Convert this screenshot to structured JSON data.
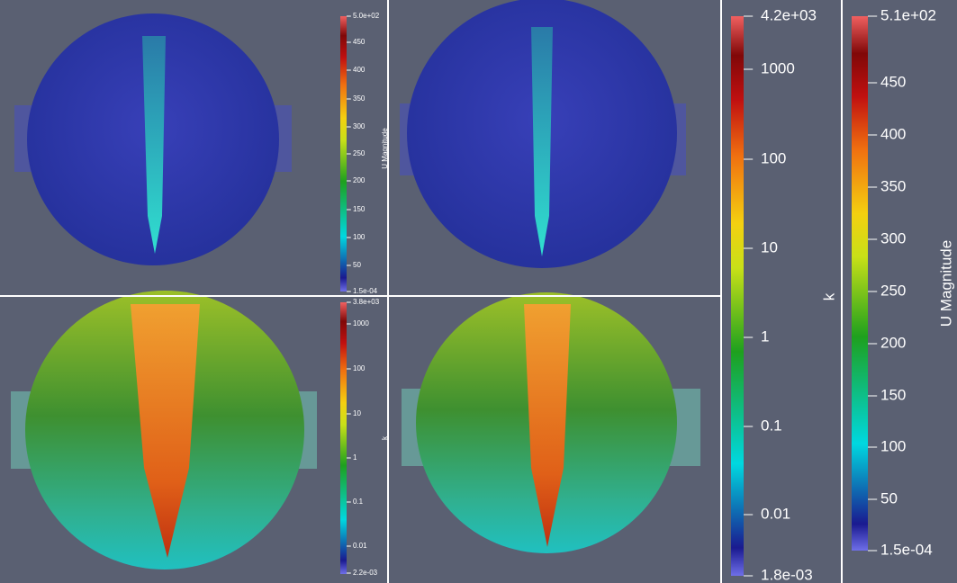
{
  "colorbars": [
    {
      "title": "U Magnitude",
      "max": "5.0e+02",
      "ticks": [
        "450",
        "400",
        "350",
        "300",
        "250",
        "200",
        "150",
        "100",
        "50"
      ],
      "min": "1.5e-04"
    },
    {
      "title": "k",
      "max": "3.8e+03",
      "ticks": [
        "1000",
        "100",
        "10",
        "1",
        "0.1",
        "0.01"
      ],
      "min": "2.2e-03"
    },
    {
      "title": "k",
      "max": "4.2e+03",
      "ticks": [
        "1000",
        "100",
        "10",
        "1",
        "0.1",
        "0.01"
      ],
      "min": "1.8e-03"
    },
    {
      "title": "U Magnitude",
      "max": "5.1e+02",
      "ticks": [
        "450",
        "400",
        "350",
        "300",
        "250",
        "200",
        "150",
        "100",
        "50"
      ],
      "min": "1.5e-04"
    }
  ]
}
